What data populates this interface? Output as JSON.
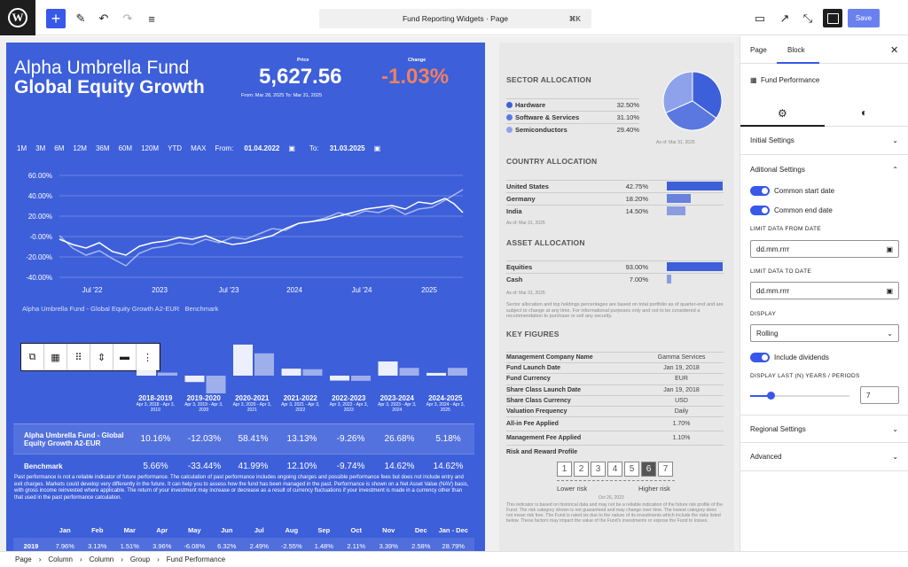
{
  "toolbar": {
    "title": "Fund Reporting Widgets · Page",
    "shortcut": "⌘K",
    "save": "Save"
  },
  "fund": {
    "name_line1": "Alpha Umbrella Fund",
    "name_line2": "Global Equity Growth",
    "price_label": "Price",
    "price": "5,627.56",
    "price_range": "From: Mar 28, 2025  To: Mar 31, 2025",
    "change_label": "Change",
    "change": "-1.03%",
    "change_color": "#f08060",
    "ranges": [
      "1M",
      "3M",
      "6M",
      "12M",
      "36M",
      "60M",
      "120M",
      "YTD",
      "MAX"
    ],
    "from_label": "From:",
    "from": "01.04.2022",
    "to_label": "To:",
    "to": "31.03.2025",
    "y_ticks": [
      "60.00%",
      "40.00%",
      "20.00%",
      "-0.00%",
      "-20.00%",
      "-40.00%"
    ],
    "x_ticks": [
      "Jul '22",
      "2023",
      "Jul '23",
      "2024",
      "Jul '24",
      "2025"
    ],
    "legend": [
      "Alpha Umbrella Fund - Global Equity Growth A2-EUR",
      "Benchmark"
    ],
    "years": [
      {
        "y": "2018-2019",
        "d": "Apr 3, 2018 - Apr 3, 2019"
      },
      {
        "y": "2019-2020",
        "d": "Apr 3, 2019 - Apr 3, 2020"
      },
      {
        "y": "2020-2021",
        "d": "Apr 3, 2020 - Apr 3, 2021"
      },
      {
        "y": "2021-2022",
        "d": "Apr 3, 2021 - Apr 3, 2022"
      },
      {
        "y": "2022-2023",
        "d": "Apr 3, 2022 - Apr 3, 2023"
      },
      {
        "y": "2023-2024",
        "d": "Apr 3, 2023 - Apr 3, 2024"
      },
      {
        "y": "2024-2025",
        "d": "Apr 3, 2024 - Apr 3, 2025"
      }
    ],
    "fund_label": "Alpha Umbrella Fund - Global Equity Growth A2-EUR",
    "fund_vals": [
      "10.16%",
      "-12.03%",
      "58.41%",
      "13.13%",
      "-9.26%",
      "26.68%",
      "5.18%"
    ],
    "bench_label": "Benchmark",
    "bench_vals": [
      "5.66%",
      "-33.44%",
      "41.99%",
      "12.10%",
      "-9.74%",
      "14.62%",
      "14.62%"
    ],
    "disclaimer": "Past performance is not a reliable indicator of future performance. The calculation of past performance includes ongoing charges and possible performance fees but does not include entry and exit charges. Markets could develop very differently in the future. It can help you to assess how the fund has been managed in the past. Performance is shown on a Net Asset Value (NAV) basis, with gross income reinvested where applicable. The return of your investment may increase or decrease as a result of currency fluctuations if your investment is made in a currency other than that used in the past performance calculation.",
    "months": [
      "",
      "Jan",
      "Feb",
      "Mar",
      "Apr",
      "May",
      "Jun",
      "Jul",
      "Aug",
      "Sep",
      "Oct",
      "Nov",
      "Dec",
      "Jan - Dec"
    ],
    "month_row": [
      "2019",
      "7.96%",
      "3.13%",
      "1.51%",
      "3.96%",
      "-6.08%",
      "6.32%",
      "2.49%",
      "-2.55%",
      "1.48%",
      "2.11%",
      "3.39%",
      "2.58%",
      "28.79%"
    ]
  },
  "side": {
    "sector_h": "SECTOR ALLOCATION",
    "sectors": [
      {
        "n": "Hardware",
        "v": "32.50%",
        "c": "#3d5fd9"
      },
      {
        "n": "Software & Services",
        "v": "31.10%",
        "c": "#5b78e0"
      },
      {
        "n": "Semiconductors",
        "v": "29.40%",
        "c": "#8ea2ec"
      }
    ],
    "asof": "As of: Mar 31, 2025",
    "country_h": "COUNTRY ALLOCATION",
    "countries": [
      {
        "n": "United States",
        "v": "42.75%"
      },
      {
        "n": "Germany",
        "v": "18.20%"
      },
      {
        "n": "India",
        "v": "14.50%"
      }
    ],
    "asset_h": "ASSET ALLOCATION",
    "assets": [
      {
        "n": "Equities",
        "v": "93.00%"
      },
      {
        "n": "Cash",
        "v": "7.00%"
      }
    ],
    "alloc_note": "Sector allocation and top holdings percentages are based on total portfolio as of quarter-end and are subject to change at any time. For informational purposes only and not to be considered a recommendation to purchase or sell any security.",
    "kf_h": "KEY FIGURES",
    "kf": [
      {
        "k": "Management Company Name",
        "v": "Gamma Services"
      },
      {
        "k": "Fund Launch Date",
        "v": "Jan 19, 2018"
      },
      {
        "k": "Fund Currency",
        "v": "EUR"
      },
      {
        "k": "Share Class Launch Date",
        "v": "Jan 19, 2018"
      },
      {
        "k": "Share Class Currency",
        "v": "USD"
      },
      {
        "k": "Valuation Frequency",
        "v": "Daily"
      },
      {
        "k": "All-in Fee Applied",
        "v": "1.70%"
      },
      {
        "k": "Management Fee Applied",
        "v": "1.10%"
      },
      {
        "k": "Risk and Reward Profile",
        "v": ""
      }
    ],
    "risk": [
      "1",
      "2",
      "3",
      "4",
      "5",
      "6",
      "7"
    ],
    "lower": "Lower risk",
    "higher": "Higher risk",
    "risk_date": "Oct 26, 2023",
    "risk_note": "This indicator is based on historical data and may not be a reliable indication of the future risk profile of the Fund. The risk category shown is not guaranteed and may change over time. The lowest category does not mean risk free. The Fund is rated six due to the nature of its investments which include the risks listed below. These factors may impact the value of the Fund's investments or expose the Fund to losses."
  },
  "panel": {
    "tab_page": "Page",
    "tab_block": "Block",
    "block_name": "Fund Performance",
    "initial": "Initial Settings",
    "additional": "Aditional Settings",
    "t1": "Common start date",
    "t2": "Common end date",
    "from_cap": "LIMIT DATA FROM DATE",
    "date_ph": "dd.mm.rrrr",
    "to_cap": "LIMIT DATA TO DATE",
    "display_cap": "DISPLAY",
    "display_val": "Rolling",
    "div": "Include dividends",
    "years_cap": "DISPLAY LAST (N) YEARS / PERIODS",
    "years_val": "7",
    "regional": "Regional Settings",
    "advanced": "Advanced"
  },
  "breadcrumb": [
    "Page",
    "Column",
    "Column",
    "Group",
    "Fund Performance"
  ]
}
